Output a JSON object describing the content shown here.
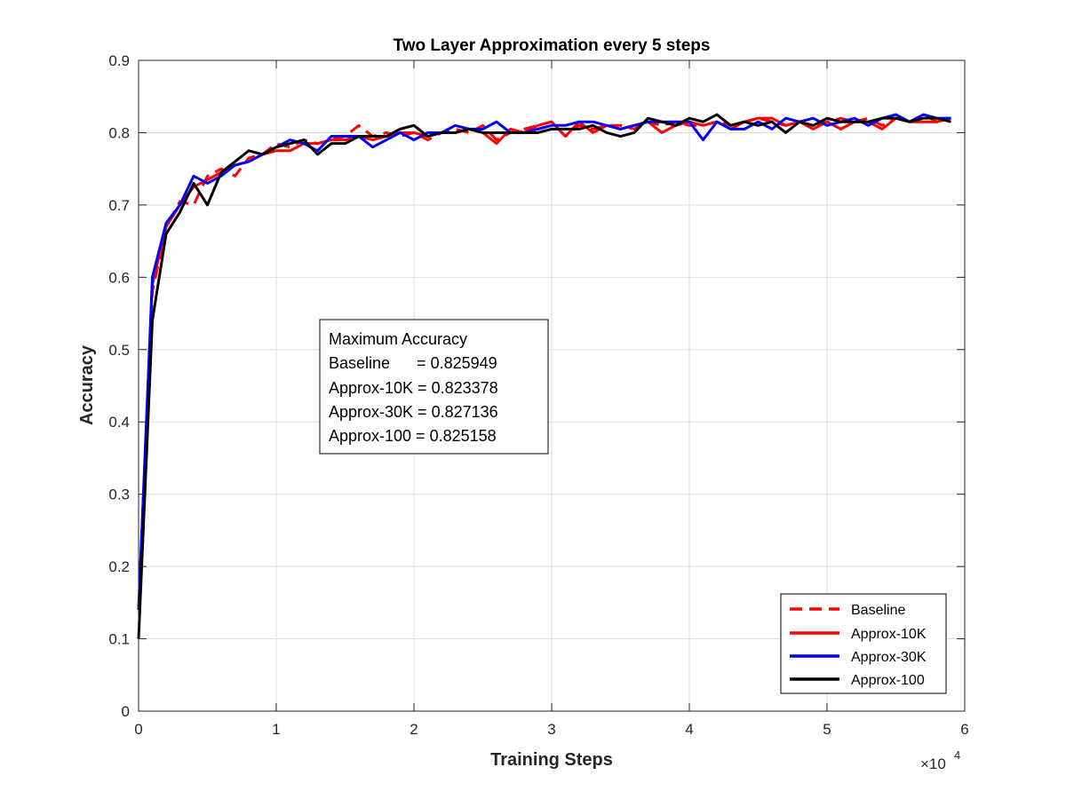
{
  "chart_data": {
    "type": "line",
    "title": "Two Layer Approximation every 5 steps",
    "xlabel": "Training Steps",
    "ylabel": "Accuracy",
    "x_multiplier_label": "×10",
    "x_multiplier_exponent": "4",
    "xlim": [
      0,
      6
    ],
    "ylim": [
      0,
      0.9
    ],
    "xticks": [
      0,
      1,
      2,
      3,
      4,
      5,
      6
    ],
    "xtick_labels": [
      "0",
      "1",
      "2",
      "3",
      "4",
      "5",
      "6"
    ],
    "yticks": [
      0,
      0.1,
      0.2,
      0.3,
      0.4,
      0.5,
      0.6,
      0.7,
      0.8,
      0.9
    ],
    "ytick_labels": [
      "0",
      "0.1",
      "0.2",
      "0.3",
      "0.4",
      "0.5",
      "0.6",
      "0.7",
      "0.8",
      "0.9"
    ],
    "grid": true,
    "legend_position": "bottom-right",
    "annotation": {
      "lines": [
        "Maximum Accuracy",
        "Baseline      = 0.825949",
        "Approx-10K = 0.823378",
        "Approx-30K = 0.827136",
        "Approx-100 = 0.825158"
      ]
    },
    "x": [
      0,
      0.1,
      0.2,
      0.3,
      0.4,
      0.5,
      0.6,
      0.7,
      0.8,
      0.9,
      1.0,
      1.1,
      1.2,
      1.3,
      1.4,
      1.5,
      1.6,
      1.7,
      1.8,
      1.9,
      2.0,
      2.1,
      2.2,
      2.3,
      2.4,
      2.5,
      2.6,
      2.7,
      2.8,
      2.9,
      3.0,
      3.1,
      3.2,
      3.3,
      3.4,
      3.5,
      3.6,
      3.7,
      3.8,
      3.9,
      4.0,
      4.1,
      4.2,
      4.3,
      4.4,
      4.5,
      4.6,
      4.7,
      4.8,
      4.9,
      5.0,
      5.1,
      5.2,
      5.3,
      5.4,
      5.5,
      5.6,
      5.7,
      5.8,
      5.9
    ],
    "series": [
      {
        "name": "Baseline",
        "color": "#ff0000",
        "dash": true,
        "values": [
          0.14,
          0.58,
          0.67,
          0.705,
          0.7,
          0.74,
          0.75,
          0.74,
          0.765,
          0.77,
          0.785,
          0.78,
          0.79,
          0.785,
          0.79,
          0.795,
          0.81,
          0.795,
          0.8,
          0.795,
          0.8,
          0.79,
          0.8,
          0.805,
          0.8,
          0.81,
          0.79,
          0.8,
          0.805,
          0.81,
          0.815,
          0.795,
          0.81,
          0.805,
          0.81,
          0.81,
          0.805,
          0.815,
          0.81,
          0.815,
          0.81,
          0.81,
          0.815,
          0.81,
          0.815,
          0.82,
          0.815,
          0.81,
          0.815,
          0.81,
          0.815,
          0.82,
          0.815,
          0.82,
          0.81,
          0.82,
          0.815,
          0.825,
          0.815,
          0.82
        ]
      },
      {
        "name": "Approx-10K",
        "color": "#ff0000",
        "dash": false,
        "values": [
          0.14,
          0.59,
          0.67,
          0.7,
          0.725,
          0.735,
          0.745,
          0.755,
          0.76,
          0.77,
          0.775,
          0.775,
          0.785,
          0.785,
          0.79,
          0.79,
          0.795,
          0.79,
          0.795,
          0.8,
          0.8,
          0.795,
          0.8,
          0.8,
          0.805,
          0.8,
          0.785,
          0.805,
          0.8,
          0.81,
          0.815,
          0.795,
          0.815,
          0.8,
          0.81,
          0.805,
          0.81,
          0.815,
          0.8,
          0.81,
          0.815,
          0.81,
          0.815,
          0.805,
          0.815,
          0.82,
          0.82,
          0.81,
          0.815,
          0.805,
          0.815,
          0.805,
          0.815,
          0.815,
          0.805,
          0.82,
          0.815,
          0.815,
          0.815,
          0.82
        ]
      },
      {
        "name": "Approx-30K",
        "color": "#0000ff",
        "dash": false,
        "values": [
          0.14,
          0.6,
          0.675,
          0.7,
          0.74,
          0.73,
          0.74,
          0.755,
          0.76,
          0.77,
          0.78,
          0.79,
          0.785,
          0.775,
          0.795,
          0.795,
          0.795,
          0.78,
          0.79,
          0.8,
          0.79,
          0.8,
          0.8,
          0.81,
          0.805,
          0.805,
          0.815,
          0.8,
          0.8,
          0.805,
          0.81,
          0.81,
          0.815,
          0.815,
          0.81,
          0.805,
          0.81,
          0.815,
          0.815,
          0.815,
          0.815,
          0.79,
          0.815,
          0.805,
          0.805,
          0.815,
          0.805,
          0.82,
          0.815,
          0.82,
          0.81,
          0.815,
          0.82,
          0.81,
          0.82,
          0.825,
          0.815,
          0.825,
          0.82,
          0.82
        ]
      },
      {
        "name": "Approx-100",
        "color": "#000000",
        "dash": false,
        "values": [
          0.1,
          0.54,
          0.66,
          0.69,
          0.73,
          0.7,
          0.745,
          0.76,
          0.775,
          0.77,
          0.78,
          0.785,
          0.79,
          0.77,
          0.785,
          0.785,
          0.795,
          0.795,
          0.795,
          0.805,
          0.81,
          0.795,
          0.8,
          0.8,
          0.805,
          0.8,
          0.8,
          0.8,
          0.8,
          0.8,
          0.805,
          0.805,
          0.805,
          0.81,
          0.8,
          0.795,
          0.8,
          0.82,
          0.815,
          0.81,
          0.82,
          0.815,
          0.825,
          0.81,
          0.815,
          0.81,
          0.815,
          0.8,
          0.815,
          0.81,
          0.82,
          0.815,
          0.815,
          0.815,
          0.82,
          0.82,
          0.815,
          0.82,
          0.82,
          0.815
        ]
      }
    ]
  }
}
